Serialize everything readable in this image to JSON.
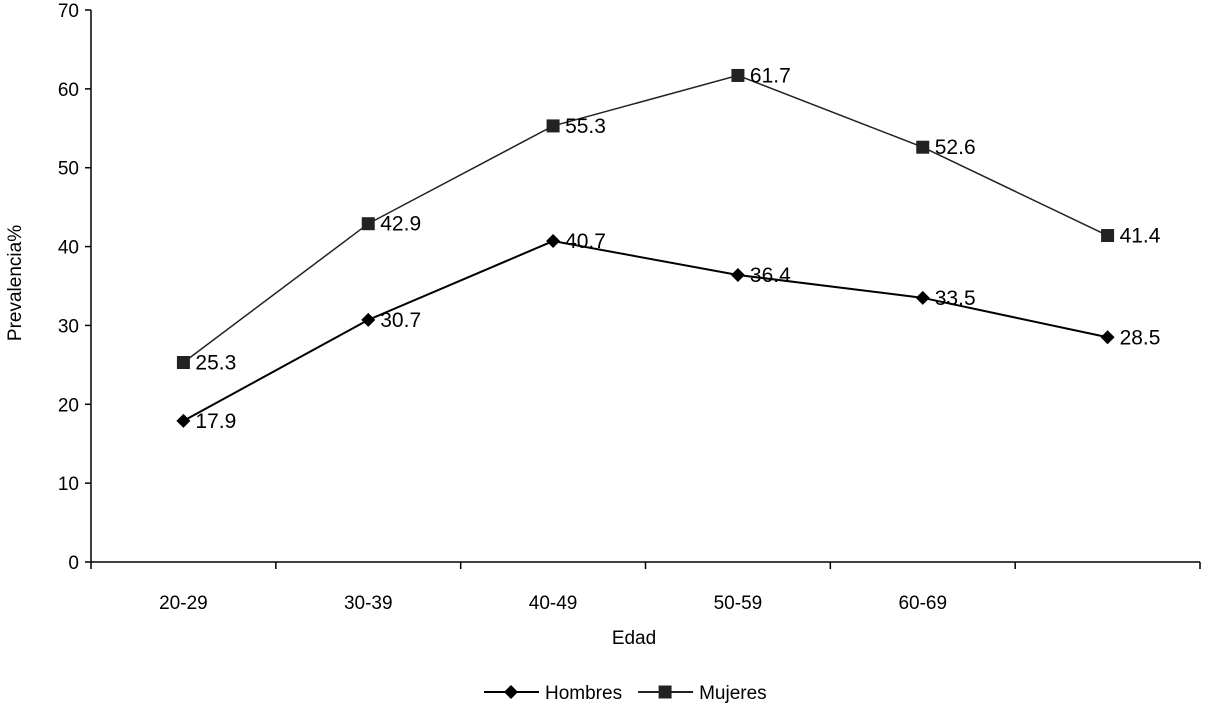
{
  "chart_data": {
    "type": "line",
    "title": "",
    "xlabel": "Edad",
    "ylabel": "Prevalencia%",
    "categories": [
      "20-29",
      "30-39",
      "40-49",
      "50-59",
      "60-69",
      ""
    ],
    "ylim": [
      0,
      70
    ],
    "yticks": [
      0,
      10,
      20,
      30,
      40,
      50,
      60,
      70
    ],
    "grid": false,
    "legend_position": "bottom",
    "series": [
      {
        "name": "Hombres",
        "marker": "diamond",
        "color": "#000000",
        "values": [
          17.9,
          30.7,
          40.7,
          36.4,
          33.5,
          28.5
        ],
        "labels": [
          "17.9",
          "30.7",
          "40.7",
          "36.4",
          "33.5",
          "28.5"
        ]
      },
      {
        "name": "Mujeres",
        "marker": "square",
        "color": "#222222",
        "values": [
          25.3,
          42.9,
          55.3,
          61.7,
          52.6,
          41.4
        ],
        "labels": [
          "25.3",
          "42.9",
          "55.3",
          "61.7",
          "52.6",
          "41.4"
        ]
      }
    ]
  }
}
